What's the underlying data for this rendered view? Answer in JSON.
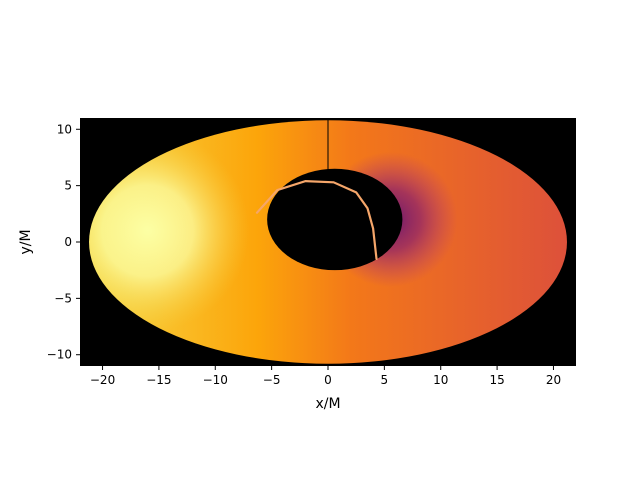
{
  "chart_data": {
    "type": "heatmap",
    "title": "",
    "xlabel": "x/M",
    "ylabel": "y/M",
    "xlim": [
      -22,
      22
    ],
    "ylim": [
      -11,
      11
    ],
    "x_ticks": [
      -20,
      -15,
      -10,
      -5,
      0,
      5,
      10,
      15,
      20
    ],
    "y_ticks": [
      -10,
      -5,
      0,
      5,
      10
    ],
    "x_tick_labels": [
      "−20",
      "−15",
      "−10",
      "−5",
      "0",
      "5",
      "10",
      "15",
      "20"
    ],
    "y_tick_labels": [
      "−10",
      "−5",
      "0",
      "5",
      "10"
    ],
    "background_color": "#000000",
    "colormap": "inferno",
    "colormap_stops": [
      "#fcffa4",
      "#f6d645",
      "#fca50a",
      "#f37819",
      "#dd513a",
      "#b73779",
      "#932667",
      "#6a176e"
    ],
    "disk": {
      "outer_center": [
        0,
        0
      ],
      "outer_radius_x": 21.2,
      "outer_radius_y": 10.8,
      "outer_top_clip": 11,
      "shadow_center": [
        0.6,
        2.0
      ],
      "shadow_radius_x": 6.0,
      "shadow_radius_y": 4.5,
      "brightest_side": "left",
      "dimmest_region": [
        5.5,
        2.0
      ]
    },
    "photon_ring": {
      "color": "#f5a66a",
      "points": [
        [
          -6.3,
          2.6
        ],
        [
          -4.5,
          4.6
        ],
        [
          -2.0,
          5.4
        ],
        [
          0.5,
          5.3
        ],
        [
          2.5,
          4.4
        ],
        [
          3.5,
          3.0
        ],
        [
          4.0,
          1.2
        ],
        [
          4.3,
          -1.5
        ]
      ]
    },
    "jet_line": {
      "x": 0,
      "y_from": 6.4,
      "y_to": 11,
      "color": "#000000"
    }
  }
}
